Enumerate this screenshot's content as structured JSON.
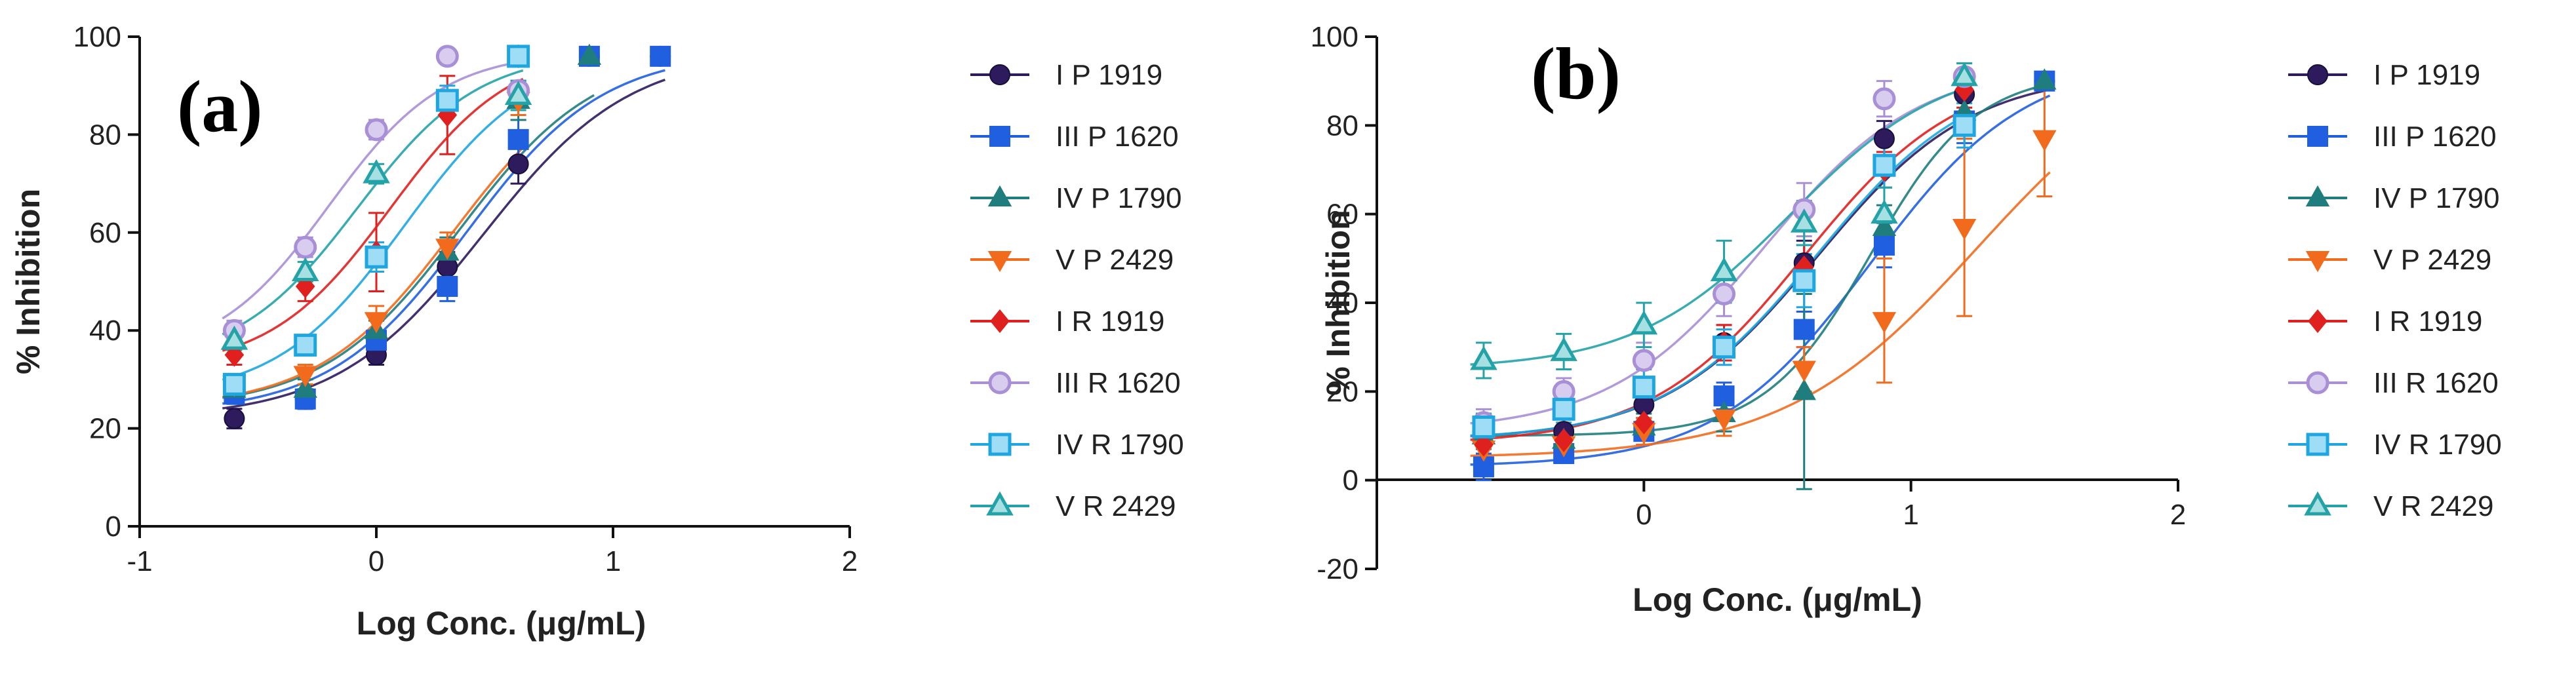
{
  "chart_data": [
    {
      "type": "scatter",
      "panel_label": "(a)",
      "xlabel": "Log Conc. (μg/mL)",
      "ylabel": "% Inhibition",
      "xlim": [
        -1,
        2
      ],
      "ylim": [
        0,
        100
      ],
      "x_ticks": [
        -1,
        0,
        1,
        2
      ],
      "x_tick_labels": [
        "-1",
        "0",
        "1",
        "2"
      ],
      "y_ticks": [
        0,
        20,
        40,
        60,
        80,
        100
      ],
      "y_tick_labels": [
        "0",
        "20",
        "40",
        "60",
        "80",
        "100"
      ],
      "grid": false,
      "legend_position": "right",
      "fit": "sigmoidal dose-response curve",
      "series": [
        {
          "name": "I P 1919",
          "color": "#2d1b5e",
          "marker": "circle",
          "x": [
            -0.6,
            -0.3,
            0,
            0.3,
            0.6,
            0.9,
            1.2
          ],
          "y": [
            22,
            26,
            35,
            53,
            74,
            96,
            96
          ],
          "err": [
            2,
            2,
            2,
            3,
            4,
            1,
            1
          ],
          "fit": {
            "bottom": 22,
            "top": 97,
            "logec50": 0.45,
            "hill": 1.4
          }
        },
        {
          "name": "III P 1620",
          "color": "#1f5fe0",
          "marker": "square",
          "x": [
            -0.6,
            -0.3,
            0,
            0.3,
            0.6,
            0.9,
            1.2
          ],
          "y": [
            27,
            26,
            38,
            49,
            79,
            96,
            96
          ],
          "err": [
            2,
            2,
            2,
            3,
            4,
            1,
            1
          ],
          "fit": {
            "bottom": 23,
            "top": 97,
            "logec50": 0.38,
            "hill": 1.5
          }
        },
        {
          "name": "IV P 1790",
          "color": "#1f7d7d",
          "marker": "triangle-up",
          "x": [
            -0.6,
            -0.3,
            0,
            0.3,
            0.6,
            0.9
          ],
          "y": [
            28,
            28,
            40,
            56,
            87,
            96
          ],
          "err": [
            2,
            2,
            2,
            3,
            4,
            1
          ],
          "fit": {
            "bottom": 24,
            "top": 97,
            "logec50": 0.35,
            "hill": 1.5
          }
        },
        {
          "name": "V P 2429",
          "color": "#f26b1d",
          "marker": "triangle-down",
          "x": [
            -0.6,
            -0.3,
            0,
            0.3,
            0.6
          ],
          "y": [
            29,
            31,
            42,
            57,
            87
          ],
          "err": [
            2,
            2,
            3,
            3,
            3
          ],
          "fit": {
            "bottom": 24,
            "top": 97,
            "logec50": 0.33,
            "hill": 1.5
          }
        },
        {
          "name": "I R 1919",
          "color": "#e0201f",
          "marker": "diamond",
          "x": [
            -0.6,
            -0.3,
            0,
            0.3,
            0.6
          ],
          "y": [
            35,
            49,
            56,
            84,
            96
          ],
          "err": [
            2,
            3,
            8,
            8,
            1
          ],
          "fit": {
            "bottom": 32,
            "top": 98,
            "logec50": 0.06,
            "hill": 1.7
          }
        },
        {
          "name": "III R 1620",
          "color": "#a98fd6",
          "marker": "circle-ring",
          "x": [
            -0.6,
            -0.3,
            0,
            0.3,
            0.6
          ],
          "y": [
            40,
            57,
            81,
            96,
            89
          ],
          "err": [
            2,
            2,
            2,
            1,
            2
          ],
          "fit": {
            "bottom": 34,
            "top": 97,
            "logec50": -0.2,
            "hill": 1.8
          }
        },
        {
          "name": "IV R 1790",
          "color": "#1da6e0",
          "marker": "square-ring",
          "x": [
            -0.6,
            -0.3,
            0,
            0.3,
            0.6
          ],
          "y": [
            29,
            37,
            55,
            87,
            96
          ],
          "err": [
            2,
            2,
            3,
            3,
            1
          ],
          "fit": {
            "bottom": 26,
            "top": 97,
            "logec50": 0.12,
            "hill": 1.6
          }
        },
        {
          "name": "V R 2429",
          "color": "#23a3a8",
          "marker": "triangle-ring",
          "x": [
            -0.6,
            -0.3,
            0,
            0.6
          ],
          "y": [
            38,
            52,
            72,
            88
          ],
          "err": [
            2,
            2,
            2,
            3
          ],
          "fit": {
            "bottom": 33,
            "top": 97,
            "logec50": -0.08,
            "hill": 1.7
          }
        }
      ]
    },
    {
      "type": "scatter",
      "panel_label": "(b)",
      "xlabel": "Log Conc. (μg/mL)",
      "ylabel": "% Inhibition",
      "xlim": [
        -1,
        2
      ],
      "ylim": [
        -20,
        100
      ],
      "x_ticks": [
        0,
        1,
        2
      ],
      "x_tick_labels": [
        "0",
        "1",
        "2"
      ],
      "y_ticks": [
        -20,
        0,
        20,
        40,
        60,
        80,
        100
      ],
      "y_tick_labels": [
        "-20",
        "0",
        "20",
        "40",
        "60",
        "80",
        "100"
      ],
      "grid": false,
      "legend_position": "right",
      "fit": "sigmoidal dose-response curve",
      "series": [
        {
          "name": "I P 1919",
          "color": "#2d1b5e",
          "marker": "circle",
          "x": [
            -0.6,
            -0.3,
            0,
            0.3,
            0.6,
            0.9,
            1.2,
            1.5
          ],
          "y": [
            12,
            11,
            17,
            31,
            49,
            77,
            87,
            90
          ],
          "err": [
            3,
            3,
            3,
            4,
            5,
            4,
            4,
            2
          ],
          "fit": {
            "bottom": 9,
            "top": 92,
            "logec50": 0.65,
            "hill": 1.5
          }
        },
        {
          "name": "III P 1620",
          "color": "#1f5fe0",
          "marker": "square",
          "x": [
            -0.6,
            -0.3,
            0,
            0.3,
            0.6,
            0.9,
            1.2,
            1.5
          ],
          "y": [
            3,
            6,
            11,
            19,
            34,
            53,
            81,
            90
          ],
          "err": [
            3,
            2,
            3,
            3,
            4,
            5,
            5,
            2
          ],
          "fit": {
            "bottom": 3,
            "top": 95,
            "logec50": 0.85,
            "hill": 1.5
          }
        },
        {
          "name": "IV P 1790",
          "color": "#1f7d7d",
          "marker": "triangle-up",
          "x": [
            -0.6,
            -0.3,
            0,
            0.3,
            0.6,
            0.9,
            1.2,
            1.5
          ],
          "y": [
            10,
            9,
            12,
            15,
            20,
            57,
            83,
            90
          ],
          "err": [
            3,
            3,
            3,
            4,
            22,
            5,
            6,
            2
          ],
          "fit": {
            "bottom": 10,
            "top": 92,
            "logec50": 0.85,
            "hill": 2.2
          }
        },
        {
          "name": "V P 2429",
          "color": "#f26b1d",
          "marker": "triangle-down",
          "x": [
            -0.6,
            -0.3,
            0,
            0.3,
            0.6,
            0.9,
            1.2,
            1.5
          ],
          "y": [
            7,
            8,
            11,
            14,
            25,
            36,
            57,
            77
          ],
          "err": [
            3,
            3,
            3,
            4,
            5,
            14,
            20,
            13
          ],
          "fit": {
            "bottom": 5,
            "top": 100,
            "logec50": 1.25,
            "hill": 1.2
          }
        },
        {
          "name": "I R 1919",
          "color": "#e0201f",
          "marker": "diamond",
          "x": [
            -0.6,
            -0.3,
            0,
            0.3,
            0.6,
            0.9,
            1.2
          ],
          "y": [
            8,
            9,
            13,
            31,
            48,
            70,
            88
          ],
          "err": [
            3,
            3,
            3,
            4,
            5,
            4,
            4
          ],
          "fit": {
            "bottom": 8,
            "top": 93,
            "logec50": 0.6,
            "hill": 1.5
          }
        },
        {
          "name": "III R 1620",
          "color": "#a98fd6",
          "marker": "circle-ring",
          "x": [
            -0.6,
            -0.3,
            0,
            0.3,
            0.6,
            0.9,
            1.2
          ],
          "y": [
            13,
            20,
            27,
            42,
            61,
            86,
            91
          ],
          "err": [
            3,
            3,
            4,
            5,
            6,
            4,
            3
          ],
          "fit": {
            "bottom": 11,
            "top": 94,
            "logec50": 0.45,
            "hill": 1.5
          }
        },
        {
          "name": "IV R 1790",
          "color": "#1da6e0",
          "marker": "square-ring",
          "x": [
            -0.6,
            -0.3,
            0,
            0.3,
            0.6,
            0.9,
            1.2
          ],
          "y": [
            12,
            16,
            21,
            30,
            45,
            71,
            80
          ],
          "err": [
            3,
            3,
            4,
            4,
            6,
            5,
            5
          ],
          "fit": {
            "bottom": 9,
            "top": 93,
            "logec50": 0.65,
            "hill": 1.5
          }
        },
        {
          "name": "V R 2429",
          "color": "#23a3a8",
          "marker": "triangle-ring",
          "x": [
            -0.6,
            -0.3,
            0,
            0.3,
            0.6,
            0.9,
            1.2
          ],
          "y": [
            27,
            29,
            35,
            47,
            58,
            60,
            91
          ],
          "err": [
            4,
            4,
            5,
            7,
            5,
            6,
            3
          ],
          "fit": {
            "bottom": 25,
            "top": 95,
            "logec50": 0.55,
            "hill": 1.5
          }
        }
      ]
    }
  ]
}
